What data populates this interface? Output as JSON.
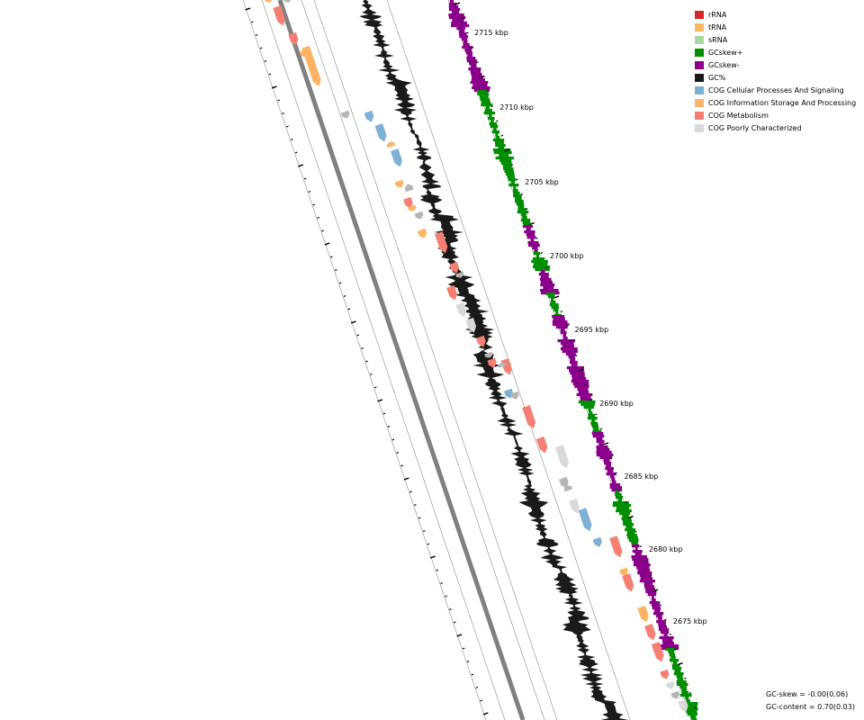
{
  "legend": {
    "items": [
      {
        "label": "rRNA",
        "color": "#d62728"
      },
      {
        "label": "tRNA",
        "color": "#fdb863"
      },
      {
        "label": "sRNA",
        "color": "#a6dba0"
      },
      {
        "label": "GCskew+",
        "color": "#008f00"
      },
      {
        "label": "GCskew-",
        "color": "#8b008b"
      },
      {
        "label": "GC%",
        "color": "#1a1a1a"
      },
      {
        "label": "COG Cellular Processes And Signaling",
        "color": "#7eb0d5"
      },
      {
        "label": "COG Information Storage And Processing",
        "color": "#fdb366"
      },
      {
        "label": "COG Metabolism",
        "color": "#f47f72"
      },
      {
        "label": "COG Poorly Characterized",
        "color": "#d9d9d9"
      }
    ]
  },
  "ruler": {
    "labels": [
      "2715 kbp",
      "2710 kbp",
      "2705 kbp",
      "2700 kbp",
      "2695 kbp",
      "2690 kbp",
      "2685 kbp",
      "2680 kbp",
      "2675 kbp"
    ]
  },
  "stats": {
    "gc_skew": "GC-skew = -0.00(0.06)",
    "gc_content": "GC-content = 0.70(0.03)"
  }
}
